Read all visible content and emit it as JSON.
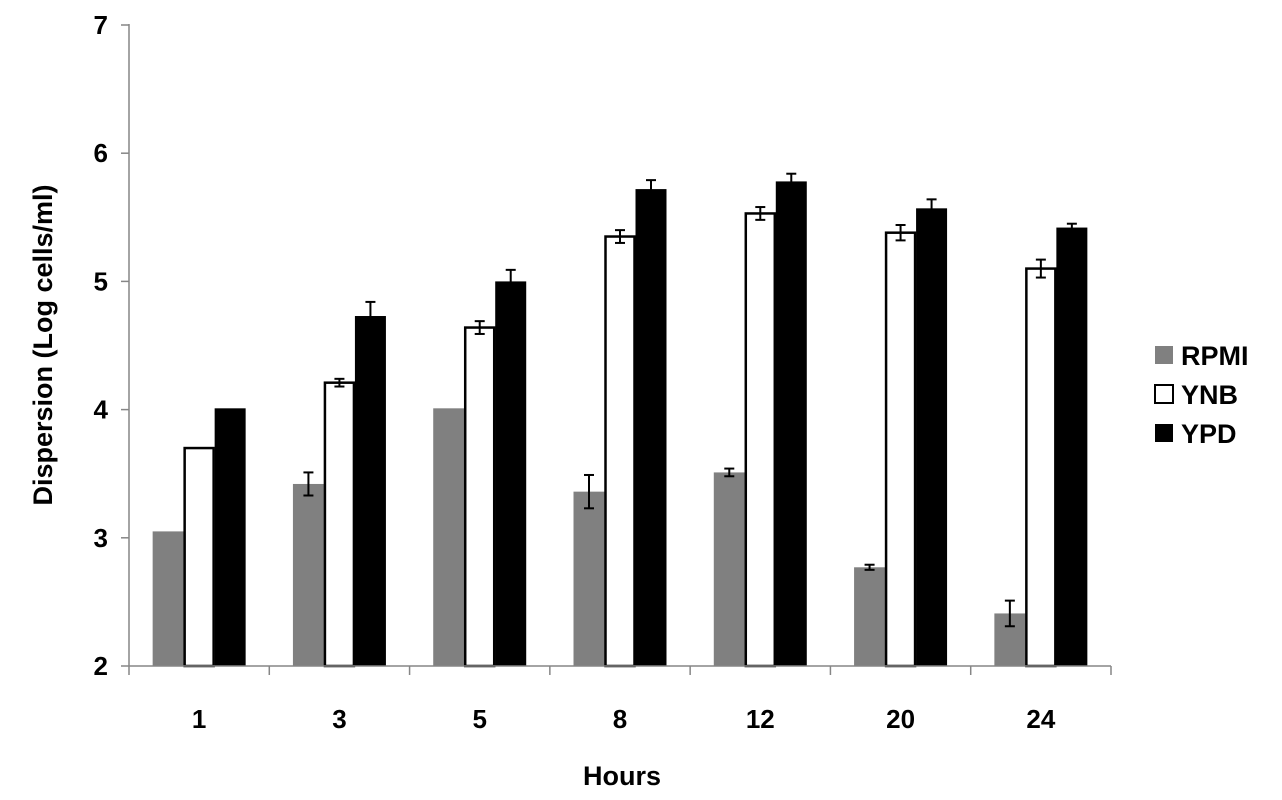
{
  "chart_data": {
    "type": "bar",
    "categories": [
      "1",
      "3",
      "5",
      "8",
      "12",
      "20",
      "24"
    ],
    "xlabel": "Hours",
    "ylabel": "Dispersion (Log cells/ml)",
    "ylim": [
      2,
      7
    ],
    "yticks": [
      "2",
      "3",
      "4",
      "5",
      "6",
      "7"
    ],
    "grid": false,
    "legend_position": "right",
    "series": [
      {
        "name": "RPMI",
        "color": "#808080",
        "fill": "solid",
        "values": [
          3.05,
          3.42,
          4.01,
          3.36,
          3.51,
          2.77,
          2.41
        ],
        "errors": [
          0,
          0.09,
          0,
          0.13,
          0.03,
          0.02,
          0.1
        ]
      },
      {
        "name": "YNB",
        "color": "#ffffff",
        "fill": "outline",
        "values": [
          3.7,
          4.21,
          4.64,
          5.35,
          5.53,
          5.38,
          5.1
        ],
        "errors": [
          0,
          0.03,
          0.05,
          0.05,
          0.05,
          0.06,
          0.07
        ]
      },
      {
        "name": "YPD",
        "color": "#000000",
        "fill": "solid",
        "values": [
          4.01,
          4.73,
          5.0,
          5.72,
          5.78,
          5.57,
          5.42
        ],
        "errors": [
          0,
          0.11,
          0.09,
          0.07,
          0.06,
          0.07,
          0.03
        ]
      }
    ]
  }
}
